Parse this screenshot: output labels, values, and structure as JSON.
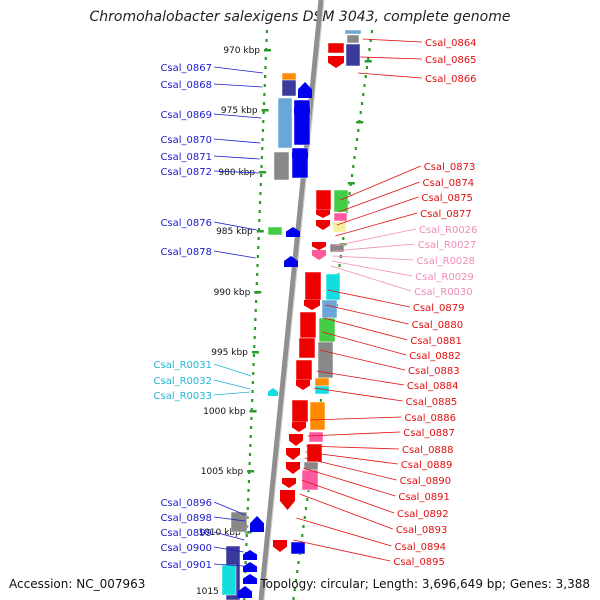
{
  "title": "Chromohalobacter salexigens DSM 3043, complete genome",
  "accession": "Accession: NC_007963",
  "topology": "Topology: circular; Length: 3,696,649 bp; Genes: 3,388",
  "colors": {
    "backbone": "#8f8f8f",
    "dots": "#2a9a2a",
    "left_labels": "#1a1acc",
    "rna_left_labels": "#22b5d8",
    "right_labels": "#e01010",
    "rna_right_labels": "#f08cb8",
    "gene_blue": "#0000ee",
    "gene_red": "#ee0000",
    "gene_green": "#44cc44",
    "gene_cyan": "#11dddd",
    "gene_orange": "#ff8c00",
    "gene_pink": "#ff5aa0",
    "gene_gray": "#888888",
    "gene_navy": "#3a3a9a",
    "gene_lightblue": "#6aa7d8",
    "gene_yellow": "#f5ef9a"
  },
  "scale_labels": [
    "970 kbp",
    "975 kbp",
    "980 kbp",
    "985 kbp",
    "990 kbp",
    "995 kbp",
    "1000 kbp",
    "1005 kbp",
    "1010 kbp",
    "1015 kbp"
  ],
  "left_labels": [
    {
      "text": "Csal_0867",
      "kind": "gene"
    },
    {
      "text": "Csal_0868",
      "kind": "gene"
    },
    {
      "text": "Csal_0869",
      "kind": "gene"
    },
    {
      "text": "Csal_0870",
      "kind": "gene"
    },
    {
      "text": "Csal_0871",
      "kind": "gene"
    },
    {
      "text": "Csal_0872",
      "kind": "gene"
    },
    {
      "text": "Csal_0876",
      "kind": "gene"
    },
    {
      "text": "Csal_0878",
      "kind": "gene"
    },
    {
      "text": "Csal_R0031",
      "kind": "rna"
    },
    {
      "text": "Csal_R0032",
      "kind": "rna"
    },
    {
      "text": "Csal_R0033",
      "kind": "rna"
    },
    {
      "text": "Csal_0896",
      "kind": "gene"
    },
    {
      "text": "Csal_0898",
      "kind": "gene"
    },
    {
      "text": "Csal_0899",
      "kind": "gene"
    },
    {
      "text": "Csal_0900",
      "kind": "gene"
    },
    {
      "text": "Csal_0901",
      "kind": "gene"
    }
  ],
  "right_labels": [
    {
      "text": "Csal_0864",
      "kind": "gene"
    },
    {
      "text": "Csal_0865",
      "kind": "gene"
    },
    {
      "text": "Csal_0866",
      "kind": "gene"
    },
    {
      "text": "Csal_0873",
      "kind": "gene"
    },
    {
      "text": "Csal_0874",
      "kind": "gene"
    },
    {
      "text": "Csal_0875",
      "kind": "gene"
    },
    {
      "text": "Csal_0877",
      "kind": "gene"
    },
    {
      "text": "Csal_R0026",
      "kind": "rna"
    },
    {
      "text": "Csal_R0027",
      "kind": "rna"
    },
    {
      "text": "Csal_R0028",
      "kind": "rna"
    },
    {
      "text": "Csal_R0029",
      "kind": "rna"
    },
    {
      "text": "Csal_R0030",
      "kind": "rna"
    },
    {
      "text": "Csal_0879",
      "kind": "gene"
    },
    {
      "text": "Csal_0880",
      "kind": "gene"
    },
    {
      "text": "Csal_0881",
      "kind": "gene"
    },
    {
      "text": "Csal_0882",
      "kind": "gene"
    },
    {
      "text": "Csal_0883",
      "kind": "gene"
    },
    {
      "text": "Csal_0884",
      "kind": "gene"
    },
    {
      "text": "Csal_0885",
      "kind": "gene"
    },
    {
      "text": "Csal_0886",
      "kind": "gene"
    },
    {
      "text": "Csal_0887",
      "kind": "gene"
    },
    {
      "text": "Csal_0888",
      "kind": "gene"
    },
    {
      "text": "Csal_0889",
      "kind": "gene"
    },
    {
      "text": "Csal_0890",
      "kind": "gene"
    },
    {
      "text": "Csal_0891",
      "kind": "gene"
    },
    {
      "text": "Csal_0892",
      "kind": "gene"
    },
    {
      "text": "Csal_0893",
      "kind": "gene"
    },
    {
      "text": "Csal_0894",
      "kind": "gene"
    },
    {
      "text": "Csal_0895",
      "kind": "gene"
    }
  ]
}
